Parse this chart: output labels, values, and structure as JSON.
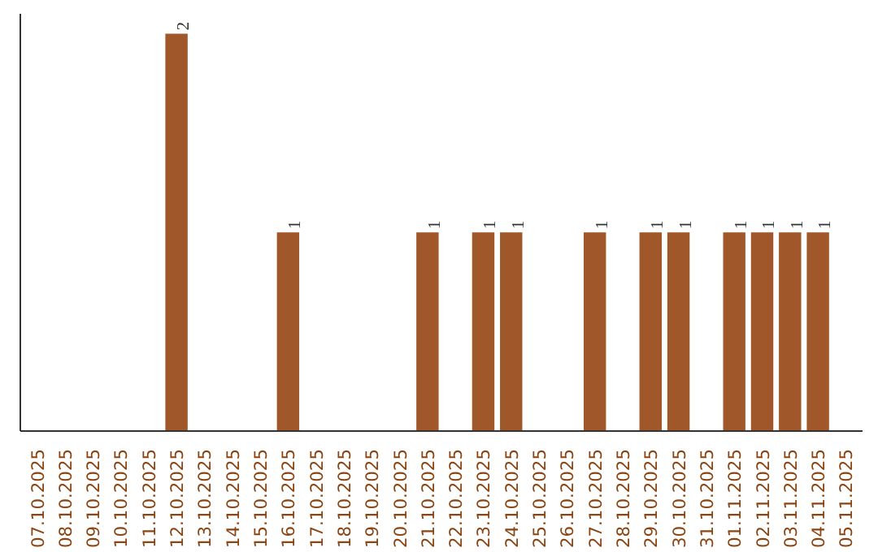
{
  "chart_data": {
    "type": "bar",
    "categories": [
      "07.10.2025",
      "08.10.2025",
      "09.10.2025",
      "10.10.2025",
      "11.10.2025",
      "12.10.2025",
      "13.10.2025",
      "14.10.2025",
      "15.10.2025",
      "16.10.2025",
      "17.10.2025",
      "18.10.2025",
      "19.10.2025",
      "20.10.2025",
      "21.10.2025",
      "22.10.2025",
      "23.10.2025",
      "24.10.2025",
      "25.10.2025",
      "26.10.2025",
      "27.10.2025",
      "28.10.2025",
      "29.10.2025",
      "30.10.2025",
      "31.10.2025",
      "01.11.2025",
      "02.11.2025",
      "03.11.2025",
      "04.11.2025",
      "05.11.2025"
    ],
    "values": [
      0,
      0,
      0,
      0,
      0,
      2,
      0,
      0,
      0,
      1,
      0,
      0,
      0,
      0,
      1,
      0,
      1,
      1,
      0,
      0,
      1,
      0,
      1,
      1,
      0,
      1,
      1,
      1,
      1,
      0
    ],
    "value_labels": [
      null,
      null,
      null,
      null,
      null,
      "2",
      null,
      null,
      null,
      "1",
      null,
      null,
      null,
      null,
      "1",
      null,
      "1",
      "1",
      null,
      null,
      "1",
      null,
      "1",
      "1",
      null,
      "1",
      "1",
      "1",
      "1",
      null
    ],
    "color": "#a0582a",
    "ylim": [
      0,
      2.1
    ],
    "tick_labels": "x",
    "grid": false
  }
}
